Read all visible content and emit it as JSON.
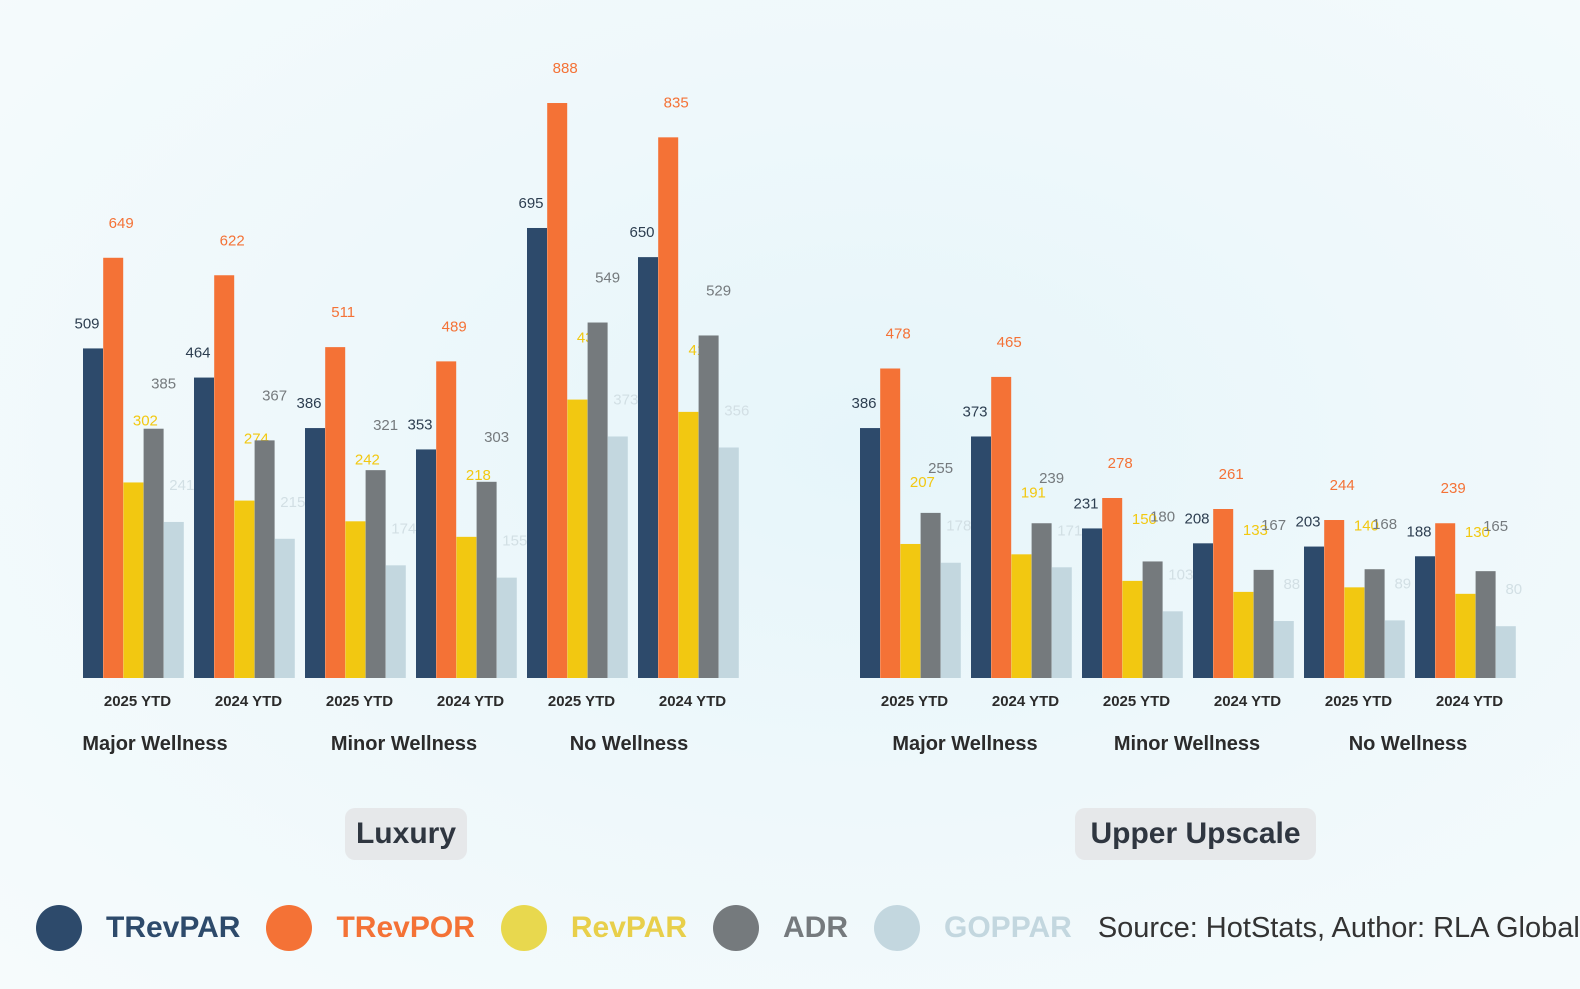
{
  "chart_data": {
    "type": "bar",
    "series": [
      {
        "name": "TRevPAR",
        "color": "#2d4a6b"
      },
      {
        "name": "TRevPOR",
        "color": "#f47236"
      },
      {
        "name": "RevPAR",
        "color": "#f2c811"
      },
      {
        "name": "ADR",
        "color": "#757a7d"
      },
      {
        "name": "GOPPAR",
        "color": "#c3d7df"
      }
    ],
    "panels": [
      {
        "segment": "Luxury",
        "groups": [
          {
            "name": "Major Wellness",
            "periods": [
              {
                "label": "2025 YTD",
                "values": [
                  509,
                  649,
                  302,
                  385,
                  241
                ]
              },
              {
                "label": "2024 YTD",
                "values": [
                  464,
                  622,
                  274,
                  367,
                  215
                ]
              }
            ]
          },
          {
            "name": "Minor Wellness",
            "periods": [
              {
                "label": "2025 YTD",
                "values": [
                  386,
                  511,
                  242,
                  321,
                  174
                ]
              },
              {
                "label": "2024 YTD",
                "values": [
                  353,
                  489,
                  218,
                  303,
                  155
                ]
              }
            ]
          },
          {
            "name": "No Wellness",
            "periods": [
              {
                "label": "2025 YTD",
                "values": [
                  695,
                  888,
                  430,
                  549,
                  373
                ]
              },
              {
                "label": "2024 YTD",
                "values": [
                  650,
                  835,
                  411,
                  529,
                  356
                ]
              }
            ]
          }
        ]
      },
      {
        "segment": "Upper Upscale",
        "groups": [
          {
            "name": "Major Wellness",
            "periods": [
              {
                "label": "2025 YTD",
                "values": [
                  386,
                  478,
                  207,
                  255,
                  178
                ]
              },
              {
                "label": "2024 YTD",
                "values": [
                  373,
                  465,
                  191,
                  239,
                  171
                ]
              }
            ]
          },
          {
            "name": "Minor Wellness",
            "periods": [
              {
                "label": "2025 YTD",
                "values": [
                  231,
                  278,
                  150,
                  180,
                  103
                ]
              },
              {
                "label": "2024 YTD",
                "values": [
                  208,
                  261,
                  133,
                  167,
                  88
                ]
              }
            ]
          },
          {
            "name": "No Wellness",
            "periods": [
              {
                "label": "2025 YTD",
                "values": [
                  203,
                  244,
                  140,
                  168,
                  89
                ]
              },
              {
                "label": "2024 YTD",
                "values": [
                  188,
                  239,
                  130,
                  165,
                  80
                ]
              }
            ]
          }
        ]
      }
    ],
    "legend": [
      "TRevPAR",
      "TRevPOR",
      "RevPAR",
      "ADR",
      "GOPPAR"
    ],
    "legend_text_colors": [
      "#2d4a6b",
      "#f47236",
      "#e8cf4a",
      "#757a7d",
      "#c3d7df"
    ],
    "legend_dot_colors": [
      "#2d4a6b",
      "#f47236",
      "#e8d84e",
      "#757a7d",
      "#c3d7df"
    ],
    "value_label_colors": [
      "#2d3e50",
      "#f47236",
      "#f2c811",
      "#757a7d",
      "#d2dfe4"
    ],
    "source": "Source: HotStats, Author: RLA Global"
  }
}
